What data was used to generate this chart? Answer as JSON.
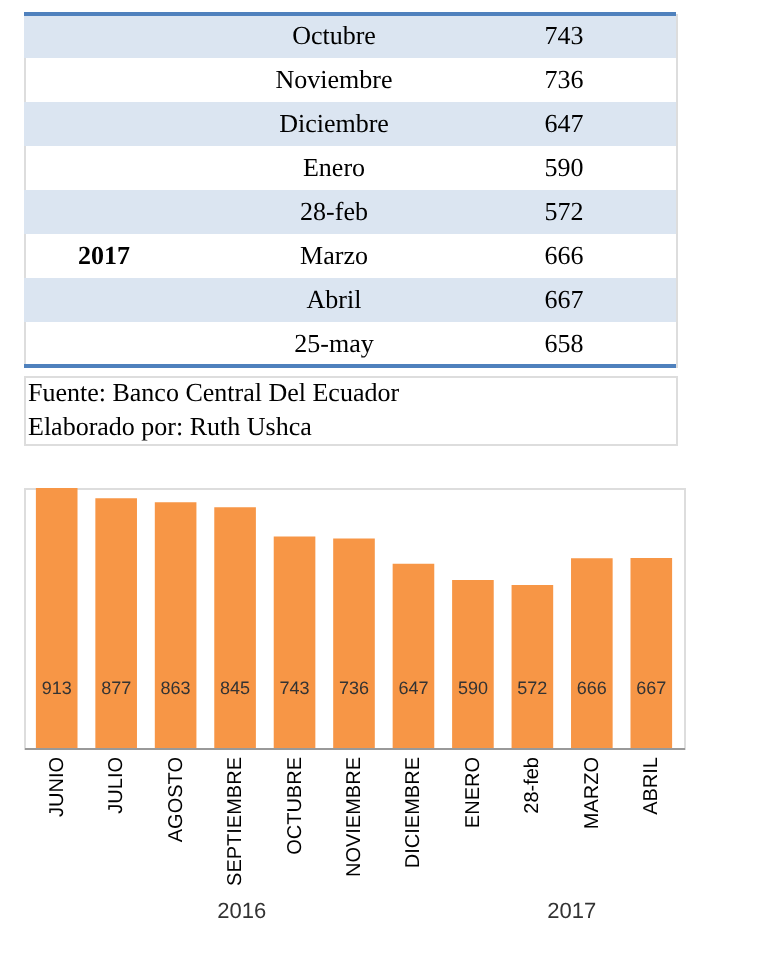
{
  "chart_data": [
    {
      "type": "other",
      "categories": [
        "Octubre",
        "Noviembre",
        "Diciembre",
        "Enero",
        "28-feb",
        "Marzo",
        "Abril",
        "25-may"
      ],
      "values": [
        743,
        736,
        647,
        590,
        572,
        666,
        667,
        658
      ],
      "data_labels": true,
      "color": "#dbe5f1",
      "annotations": [
        {
          "text": "2017",
          "x": "Marzo"
        },
        "Fuente: Banco Central Del Ecuador",
        "Elaborado por: Ruth Ushca"
      ]
    },
    {
      "type": "bar",
      "categories": [
        "JUNIO",
        "JULIO",
        "AGOSTO",
        "SEPTIEMBRE",
        "OCTUBRE",
        "NOVIEMBRE",
        "DICIEMBRE",
        "ENERO",
        "28-feb",
        "MARZO",
        "ABRIL"
      ],
      "values": [
        913,
        877,
        863,
        845,
        743,
        736,
        647,
        590,
        572,
        666,
        667
      ],
      "color": "#f79646",
      "data_labels": true,
      "annotations": [
        "2016",
        "2017"
      ]
    }
  ]
}
